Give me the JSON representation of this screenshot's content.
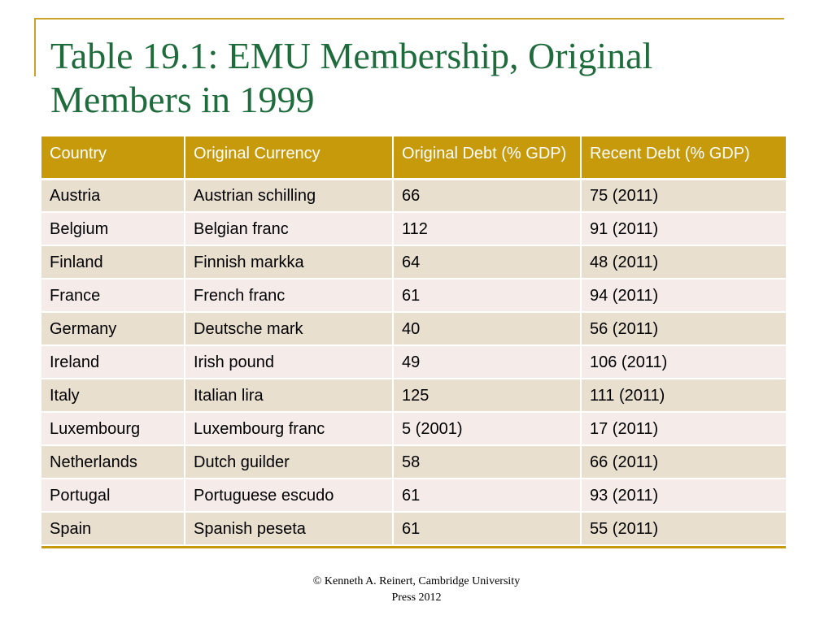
{
  "slide": {
    "title": "Table 19.1: EMU Membership, Original Members in 1999",
    "footer_line1": "© Kenneth A. Reinert, Cambridge University",
    "footer_line2": "Press 2012"
  },
  "table": {
    "headers": [
      "Country",
      "Original Currency",
      "Original Debt  (% GDP)",
      "Recent Debt (% GDP)"
    ],
    "rows": [
      [
        "Austria",
        "Austrian schilling",
        "66",
        "75 (2011)"
      ],
      [
        "Belgium",
        "Belgian franc",
        "112",
        "91 (2011)"
      ],
      [
        "Finland",
        "Finnish markka",
        "64",
        "48 (2011)"
      ],
      [
        "France",
        "French franc",
        "61",
        "94 (2011)"
      ],
      [
        "Germany",
        "Deutsche mark",
        "40",
        "56 (2011)"
      ],
      [
        "Ireland",
        "Irish pound",
        "49",
        "106 (2011)"
      ],
      [
        "Italy",
        "Italian lira",
        "125",
        "111 (2011)"
      ],
      [
        "Luxembourg",
        "Luxembourg franc",
        "5 (2001)",
        "17 (2011)"
      ],
      [
        "Netherlands",
        "Dutch guilder",
        "58",
        "66 (2011)"
      ],
      [
        "Portugal",
        "Portuguese escudo",
        "61",
        "93 (2011)"
      ],
      [
        "Spain",
        "Spanish peseta",
        "61",
        "55 (2011)"
      ]
    ]
  },
  "colors": {
    "title": "#1e6b3c",
    "accent": "#c79a0c",
    "row_odd": "#e9dfcf",
    "row_even": "#f5ecea"
  }
}
